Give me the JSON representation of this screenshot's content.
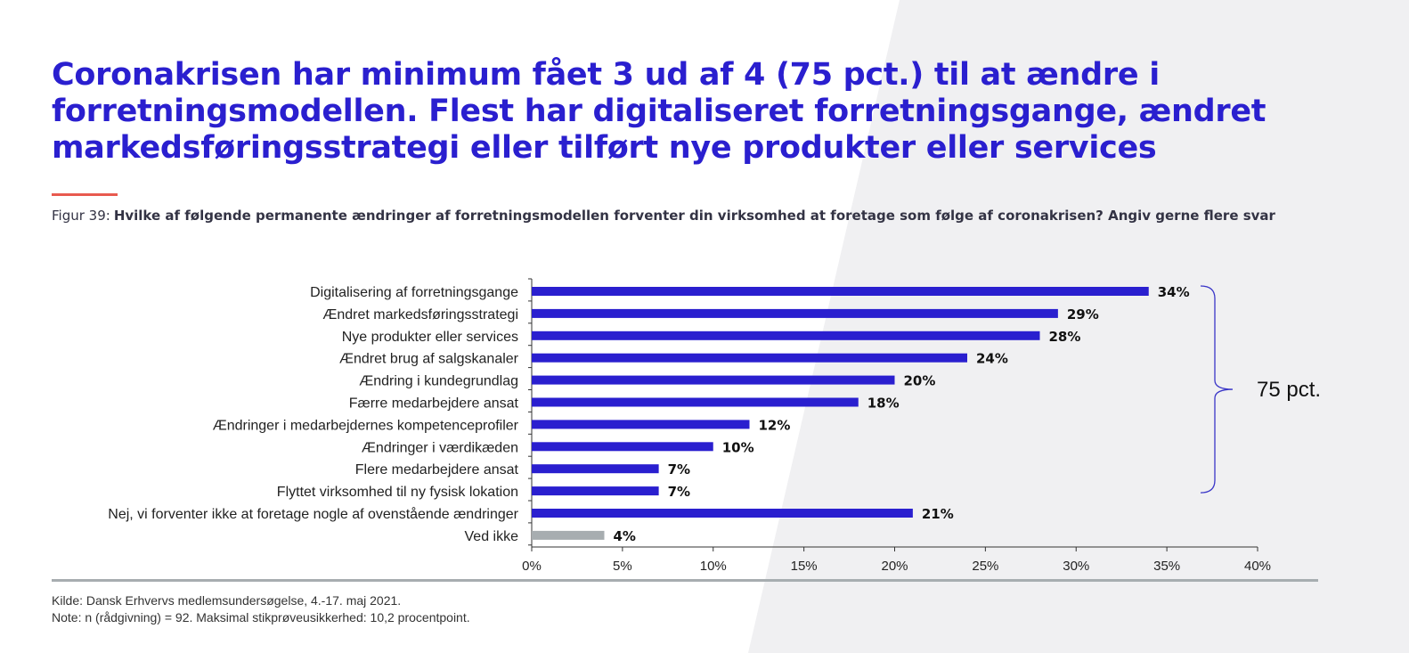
{
  "title": "Coronakrisen har minimum fået 3 ud af 4 (75 pct.) til at ændre i forretningsmodellen. Flest har digitaliseret forretningsgange, ændret markedsføringsstrategi eller tilført nye produkter eller services",
  "figure": {
    "number": "Figur 39:",
    "question": "Hvilke af følgende permanente ændringer af forretningsmodellen forventer din virksomhed at foretage som følge af coronakrisen? Angiv gerne flere svar"
  },
  "footer": {
    "source": "Kilde: Dansk Erhvervs medlemsundersøgelse, 4.-17. maj 2021.",
    "note": "Note: n (rådgivning) = 92. Maksimal stikprøveusikkerhed: 10,2 procentpoint."
  },
  "colors": {
    "title": "#2a1fcf",
    "bar": "#2a1fcf",
    "bar_dontknow": "#a7adb0",
    "accent": "#e85a4f",
    "bracket": "#3a36c8"
  },
  "chart_data": {
    "type": "bar",
    "orientation": "horizontal",
    "categories": [
      "Digitalisering af forretningsgange",
      "Ændret markedsføringsstrategi",
      "Nye produkter eller services",
      "Ændret brug af salgskanaler",
      "Ændring i kundegrundlag",
      "Færre medarbejdere ansat",
      "Ændringer i medarbejdernes kompetenceprofiler",
      "Ændringer i værdikæden",
      "Flere medarbejdere ansat",
      "Flyttet virksomhed til ny fysisk lokation",
      "Nej, vi forventer ikke at foretage nogle af ovenstående ændringer",
      "Ved ikke"
    ],
    "values": [
      34,
      29,
      28,
      24,
      20,
      18,
      12,
      10,
      7,
      7,
      21,
      4
    ],
    "value_labels": [
      "34%",
      "29%",
      "28%",
      "24%",
      "20%",
      "18%",
      "12%",
      "10%",
      "7%",
      "7%",
      "21%",
      "4%"
    ],
    "xlim": [
      0,
      40
    ],
    "xticks": [
      0,
      5,
      10,
      15,
      20,
      25,
      30,
      35,
      40
    ],
    "xtick_labels": [
      "0%",
      "5%",
      "10%",
      "15%",
      "20%",
      "25%",
      "30%",
      "35%",
      "40%"
    ],
    "grid": false,
    "annotation": {
      "text": "75 pct.",
      "bracket_from": 0,
      "bracket_to": 9
    }
  }
}
